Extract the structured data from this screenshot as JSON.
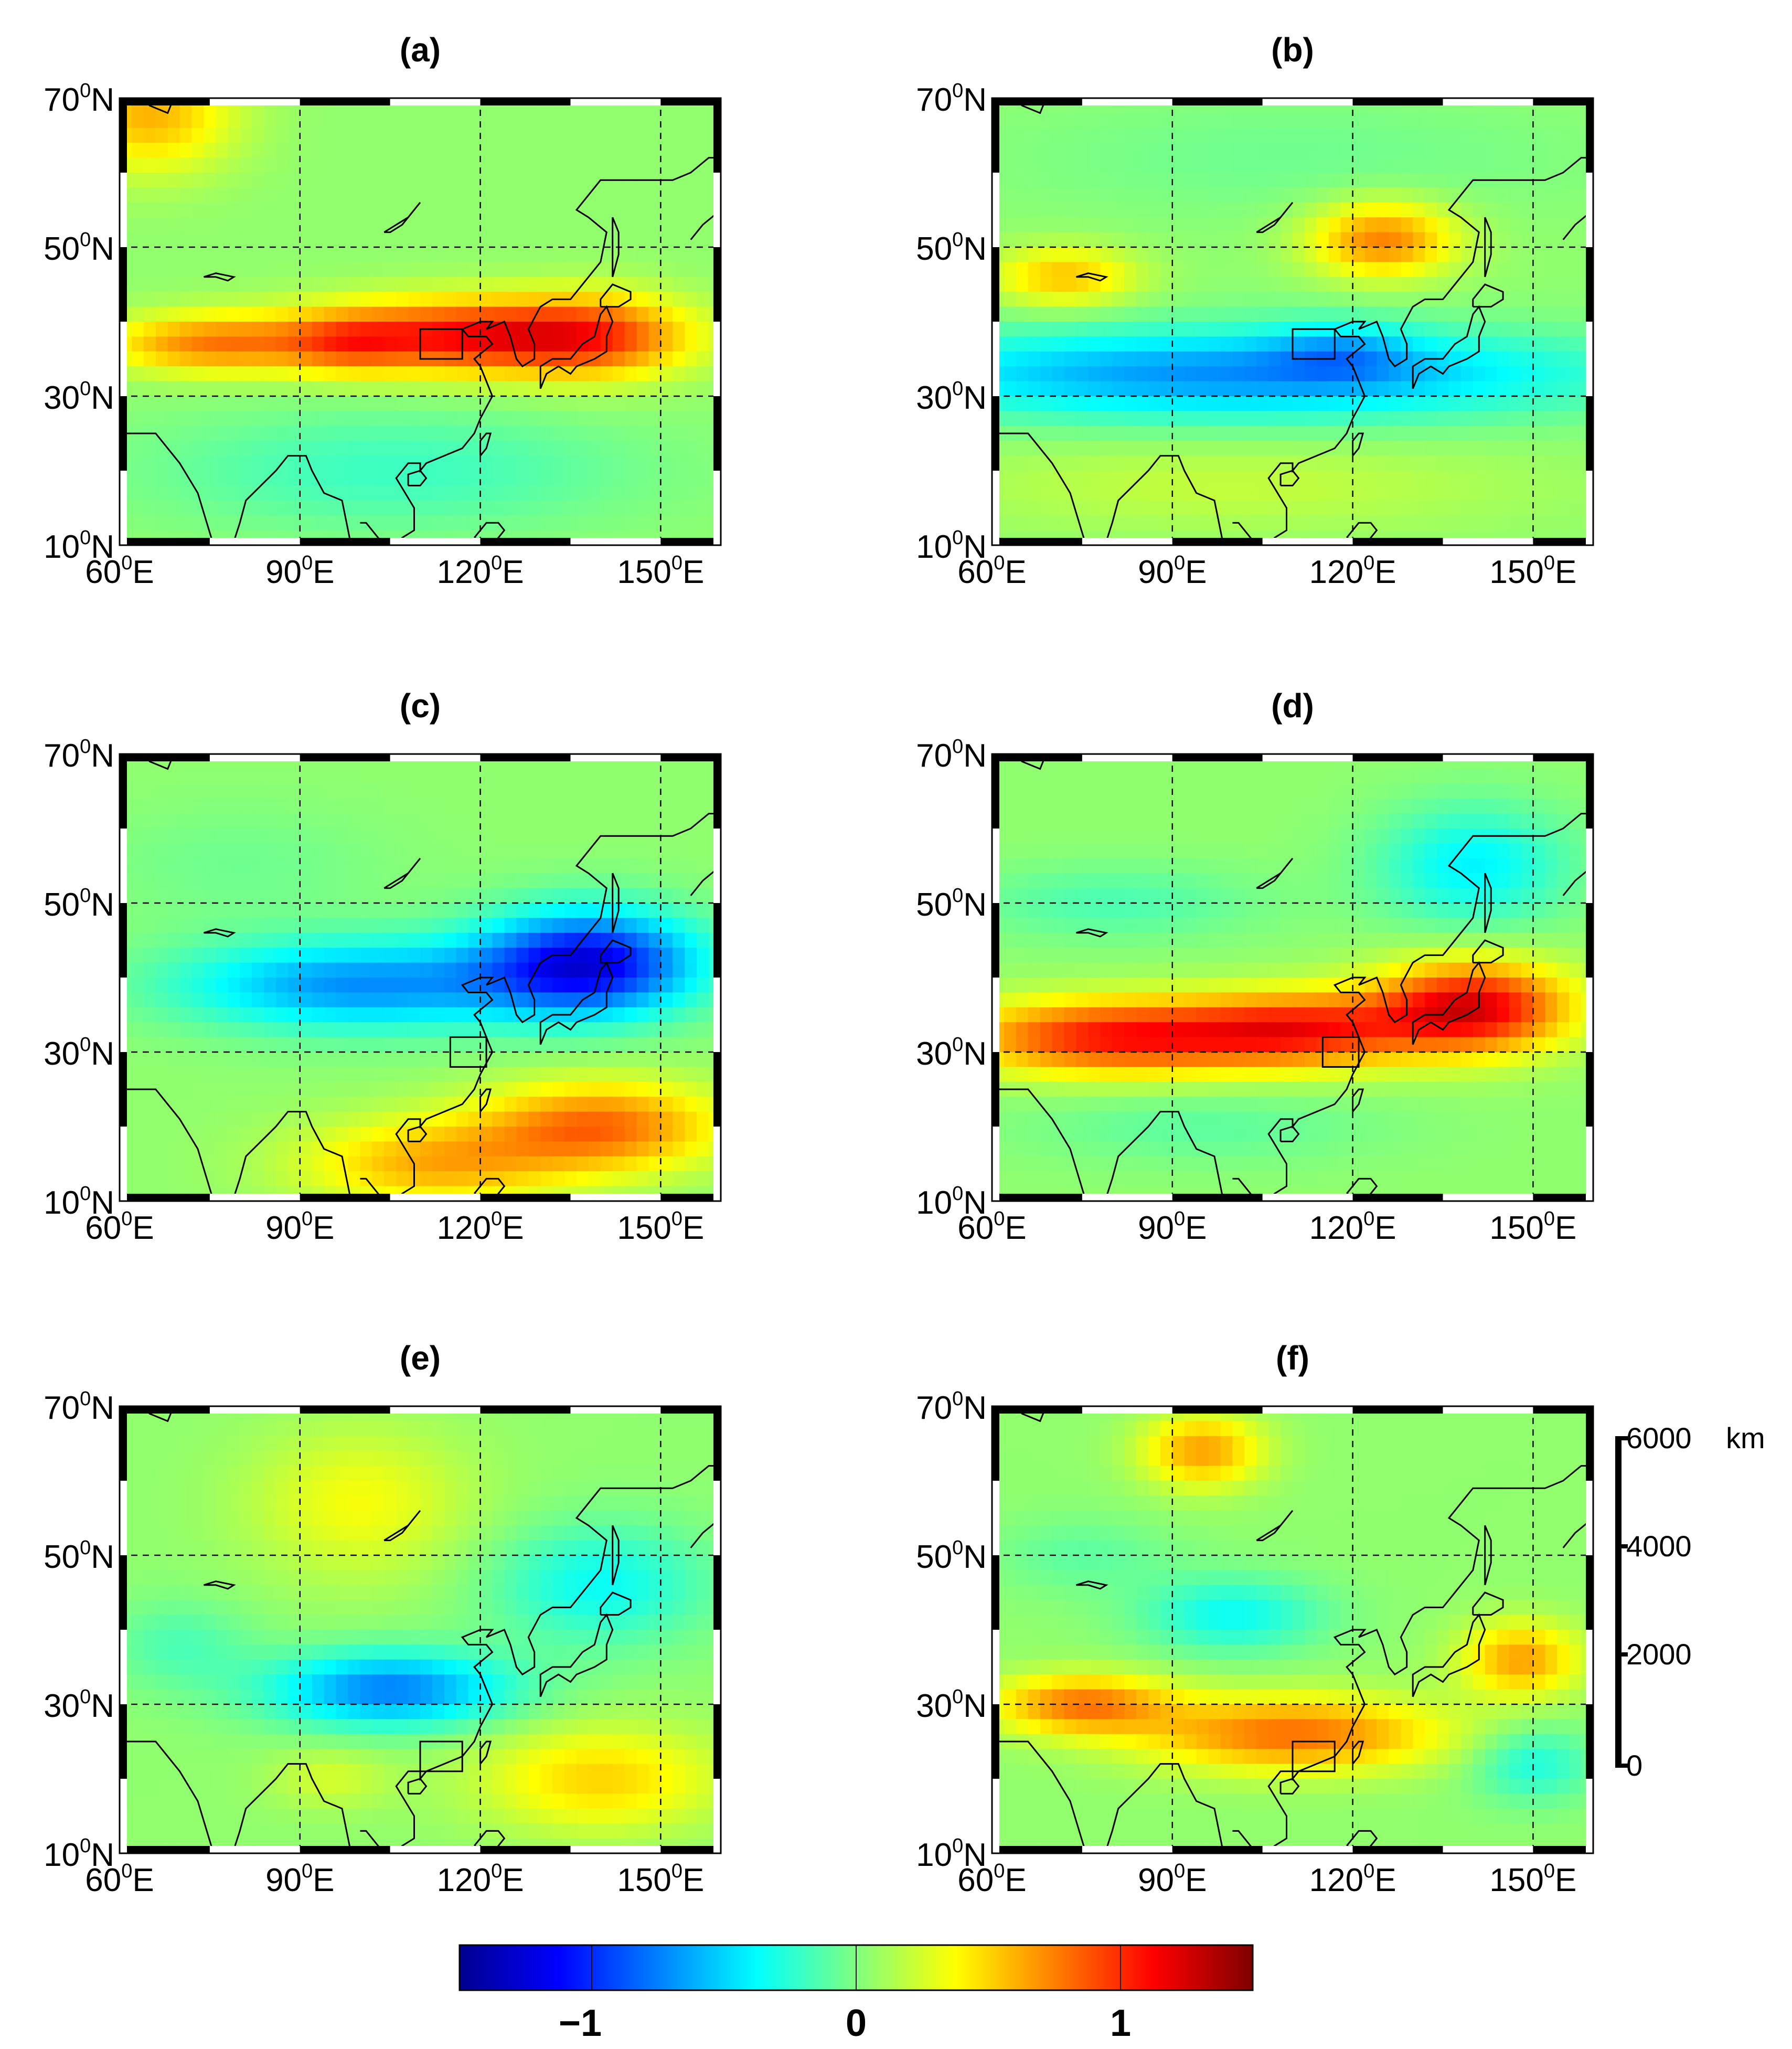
{
  "figure": {
    "panels": [
      {
        "label": "(a)",
        "box": {
          "lon": [
            110,
            117
          ],
          "lat": [
            35,
            39
          ]
        }
      },
      {
        "label": "(b)",
        "box": {
          "lon": [
            110,
            117
          ],
          "lat": [
            35,
            39
          ]
        }
      },
      {
        "label": "(c)",
        "box": {
          "lon": [
            115,
            121
          ],
          "lat": [
            28,
            32
          ]
        }
      },
      {
        "label": "(d)",
        "box": {
          "lon": [
            115,
            121
          ],
          "lat": [
            28,
            32
          ]
        }
      },
      {
        "label": "(e)",
        "box": {
          "lon": [
            110,
            117
          ],
          "lat": [
            21,
            25
          ]
        }
      },
      {
        "label": "(f)",
        "box": {
          "lon": [
            110,
            117
          ],
          "lat": [
            21,
            25
          ]
        }
      }
    ],
    "lat_ticks": [
      {
        "value": 70,
        "deg": "70",
        "sup": "0",
        "hem": "N"
      },
      {
        "value": 50,
        "deg": "50",
        "sup": "0",
        "hem": "N"
      },
      {
        "value": 30,
        "deg": "30",
        "sup": "0",
        "hem": "N"
      },
      {
        "value": 10,
        "deg": "10",
        "sup": "0",
        "hem": "N"
      }
    ],
    "lon_ticks": [
      {
        "value": 60,
        "deg": "60",
        "sup": "0",
        "hem": "E"
      },
      {
        "value": 90,
        "deg": "90",
        "sup": "0",
        "hem": "E"
      },
      {
        "value": 120,
        "deg": "120",
        "sup": "0",
        "hem": "E"
      },
      {
        "value": 150,
        "deg": "150",
        "sup": "0",
        "hem": "E"
      }
    ],
    "map_extent": {
      "lon": [
        60,
        160
      ],
      "lat": [
        10,
        70
      ]
    },
    "scalebar": {
      "labels": [
        "6000",
        "4000",
        "2000",
        "0"
      ],
      "unit": "km",
      "values": [
        6000,
        4000,
        2000,
        0
      ]
    },
    "colorbar": {
      "range": [
        -1.5,
        1.5
      ],
      "tick_labels": [
        "−1",
        "0",
        "1"
      ],
      "tick_values": [
        -1,
        0,
        1
      ],
      "colormap": "jet"
    }
  },
  "chart_data": {
    "type": "heatmap",
    "title": "",
    "xlabel": "",
    "ylabel": "",
    "xlim": [
      60,
      160
    ],
    "ylim": [
      10,
      70
    ],
    "colormap": "jet",
    "vrange": [
      -1.5,
      1.5
    ],
    "panels": [
      {
        "label": "(a)",
        "features": [
          {
            "lon": 120,
            "lat": 38,
            "slon": 28,
            "slat": 5,
            "amp": 1.1
          },
          {
            "lon": 140,
            "lat": 38,
            "slon": 14,
            "slat": 6,
            "amp": 0.4
          },
          {
            "lon": 75,
            "lat": 37,
            "slon": 18,
            "slat": 4,
            "amp": 0.65
          },
          {
            "lon": 98,
            "lat": 37,
            "slon": 10,
            "slat": 4,
            "amp": 0.35
          },
          {
            "lon": 65,
            "lat": 68,
            "slon": 14,
            "slat": 8,
            "amp": 0.55
          },
          {
            "lon": 105,
            "lat": 20,
            "slon": 40,
            "slat": 8,
            "amp": -0.25
          }
        ]
      },
      {
        "label": "(b)",
        "features": [
          {
            "lon": 100,
            "lat": 33,
            "slon": 60,
            "slat": 6,
            "amp": -0.75
          },
          {
            "lon": 118,
            "lat": 36,
            "slon": 12,
            "slat": 4,
            "amp": -0.3
          },
          {
            "lon": 125,
            "lat": 51,
            "slon": 12,
            "slat": 5,
            "amp": 0.7
          },
          {
            "lon": 72,
            "lat": 46,
            "slon": 12,
            "slat": 4,
            "amp": 0.5
          },
          {
            "lon": 100,
            "lat": 18,
            "slon": 50,
            "slat": 6,
            "amp": 0.15
          },
          {
            "lon": 110,
            "lat": 62,
            "slon": 50,
            "slat": 8,
            "amp": -0.1
          }
        ]
      },
      {
        "label": "(c)",
        "features": [
          {
            "lon": 138,
            "lat": 42,
            "slon": 18,
            "slat": 7,
            "amp": -1.2
          },
          {
            "lon": 100,
            "lat": 39,
            "slon": 30,
            "slat": 6,
            "amp": -0.75
          },
          {
            "lon": 140,
            "lat": 20,
            "slon": 20,
            "slat": 6,
            "amp": 0.75
          },
          {
            "lon": 112,
            "lat": 15,
            "slon": 22,
            "slat": 6,
            "amp": 0.55
          },
          {
            "lon": 80,
            "lat": 55,
            "slon": 25,
            "slat": 8,
            "amp": -0.1
          }
        ]
      },
      {
        "label": "(d)",
        "features": [
          {
            "lon": 80,
            "lat": 32,
            "slon": 25,
            "slat": 5,
            "amp": 1.0
          },
          {
            "lon": 112,
            "lat": 33,
            "slon": 20,
            "slat": 5,
            "amp": 0.9
          },
          {
            "lon": 140,
            "lat": 36,
            "slon": 16,
            "slat": 6,
            "amp": 1.15
          },
          {
            "lon": 140,
            "lat": 55,
            "slon": 16,
            "slat": 8,
            "amp": -0.45
          },
          {
            "lon": 80,
            "lat": 50,
            "slon": 25,
            "slat": 5,
            "amp": -0.2
          },
          {
            "lon": 95,
            "lat": 20,
            "slon": 30,
            "slat": 5,
            "amp": -0.15
          }
        ]
      },
      {
        "label": "(e)",
        "features": [
          {
            "lon": 105,
            "lat": 32,
            "slon": 20,
            "slat": 5,
            "amp": -0.8
          },
          {
            "lon": 140,
            "lat": 46,
            "slon": 18,
            "slat": 8,
            "amp": -0.4
          },
          {
            "lon": 70,
            "lat": 38,
            "slon": 12,
            "slat": 6,
            "amp": -0.2
          },
          {
            "lon": 100,
            "lat": 57,
            "slon": 18,
            "slat": 10,
            "amp": 0.3
          },
          {
            "lon": 140,
            "lat": 20,
            "slon": 20,
            "slat": 7,
            "amp": 0.45
          },
          {
            "lon": 95,
            "lat": 20,
            "slon": 10,
            "slat": 4,
            "amp": 0.2
          }
        ]
      },
      {
        "label": "(f)",
        "features": [
          {
            "lon": 110,
            "lat": 26,
            "slon": 25,
            "slat": 5,
            "amp": 0.75
          },
          {
            "lon": 75,
            "lat": 30,
            "slon": 15,
            "slat": 4,
            "amp": 0.7
          },
          {
            "lon": 148,
            "lat": 36,
            "slon": 10,
            "slat": 5,
            "amp": 0.6
          },
          {
            "lon": 95,
            "lat": 64,
            "slon": 10,
            "slat": 5,
            "amp": 0.6
          },
          {
            "lon": 100,
            "lat": 42,
            "slon": 15,
            "slat": 5,
            "amp": -0.4
          },
          {
            "lon": 150,
            "lat": 22,
            "slon": 10,
            "slat": 5,
            "amp": -0.35
          },
          {
            "lon": 75,
            "lat": 50,
            "slon": 15,
            "slat": 5,
            "amp": -0.15
          }
        ]
      }
    ]
  }
}
